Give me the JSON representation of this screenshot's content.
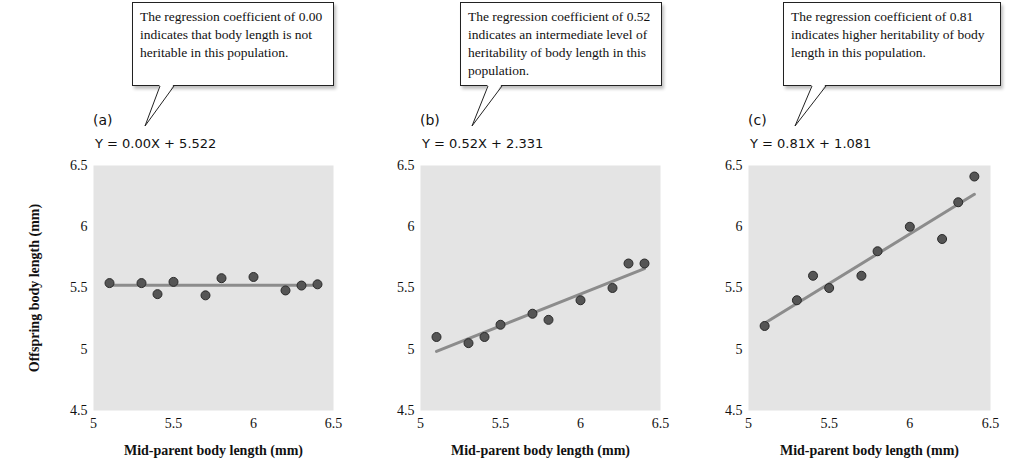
{
  "chart_data": [
    {
      "type": "scatter",
      "title": "(a)",
      "annotation": "The regression coefficient of 0.00 indicates that body length is not heritable in this population.",
      "regression": {
        "label": "Y = 0.00X + 5.522",
        "slope": 0.0,
        "intercept": 5.522
      },
      "x_label": "Mid-parent body length (mm)",
      "y_label": "Offspring body length (mm)",
      "x": [
        5.1,
        5.3,
        5.4,
        5.5,
        5.7,
        5.8,
        6.0,
        6.2,
        6.3,
        6.4
      ],
      "values": [
        5.54,
        5.54,
        5.45,
        5.55,
        5.44,
        5.58,
        5.59,
        5.48,
        5.52,
        5.53
      ],
      "xlim": [
        5,
        6.5
      ],
      "ylim": [
        4.5,
        6.5
      ],
      "xticks": [
        5,
        5.5,
        6,
        6.5
      ],
      "yticks": [
        4.5,
        5,
        5.5,
        6,
        6.5
      ],
      "color": "#555555",
      "marker": "circle"
    },
    {
      "type": "scatter",
      "title": "(b)",
      "annotation": "The regression coefficient of 0.52 indicates an intermediate level of heritability of body length in this population.",
      "regression": {
        "label": "Y = 0.52X + 2.331",
        "slope": 0.52,
        "intercept": 2.331
      },
      "x_label": "Mid-parent body length (mm)",
      "x": [
        5.1,
        5.3,
        5.4,
        5.5,
        5.7,
        5.8,
        6.0,
        6.2,
        6.3,
        6.4
      ],
      "values": [
        5.1,
        5.05,
        5.1,
        5.2,
        5.29,
        5.24,
        5.4,
        5.5,
        5.7,
        5.7
      ],
      "xlim": [
        5,
        6.5
      ],
      "ylim": [
        4.5,
        6.5
      ],
      "xticks": [
        5,
        5.5,
        6,
        6.5
      ],
      "yticks": [
        4.5,
        5,
        5.5,
        6,
        6.5
      ],
      "color": "#555555",
      "marker": "circle"
    },
    {
      "type": "scatter",
      "title": "(c)",
      "annotation": "The regression coefficient of 0.81 indicates higher heritability of body length in this population.",
      "regression": {
        "label": "Y = 0.81X + 1.081",
        "slope": 0.81,
        "intercept": 1.081
      },
      "x_label": "Mid-parent body length (mm)",
      "x": [
        5.1,
        5.3,
        5.4,
        5.5,
        5.7,
        5.8,
        6.0,
        6.2,
        6.3,
        6.4
      ],
      "values": [
        5.19,
        5.4,
        5.6,
        5.5,
        5.6,
        5.8,
        6.0,
        5.9,
        6.2,
        6.41
      ],
      "xlim": [
        5,
        6.5
      ],
      "ylim": [
        4.5,
        6.5
      ],
      "xticks": [
        5,
        5.5,
        6,
        6.5
      ],
      "yticks": [
        4.5,
        5,
        5.5,
        6,
        6.5
      ],
      "color": "#555555",
      "marker": "circle"
    }
  ]
}
